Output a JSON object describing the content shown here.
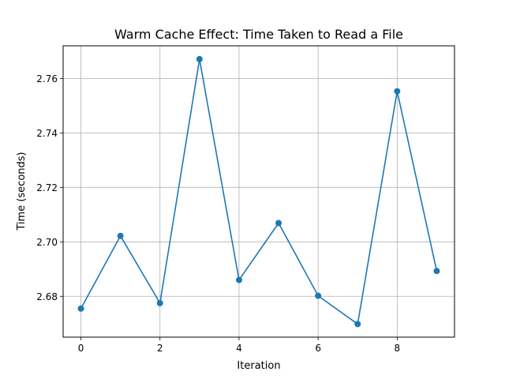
{
  "chart_data": {
    "type": "line",
    "title": "Warm Cache Effect: Time Taken to Read a File",
    "xlabel": "Iteration",
    "ylabel": "Time (seconds)",
    "x": [
      0,
      1,
      2,
      3,
      4,
      5,
      6,
      7,
      8,
      9
    ],
    "y": [
      2.6755,
      2.7022,
      2.6775,
      2.7671,
      2.686,
      2.7069,
      2.6802,
      2.6698,
      2.7553,
      2.6893
    ],
    "xlim": [
      -0.45,
      9.45
    ],
    "ylim": [
      2.665,
      2.772
    ],
    "xticks": [
      0,
      2,
      4,
      6,
      8
    ],
    "xtick_labels": [
      "0",
      "2",
      "4",
      "6",
      "8"
    ],
    "yticks": [
      2.68,
      2.7,
      2.72,
      2.74,
      2.76
    ],
    "ytick_labels": [
      "2.68",
      "2.70",
      "2.72",
      "2.74",
      "2.76"
    ],
    "grid": true,
    "marker": "circle",
    "color": "#1f77b4"
  }
}
